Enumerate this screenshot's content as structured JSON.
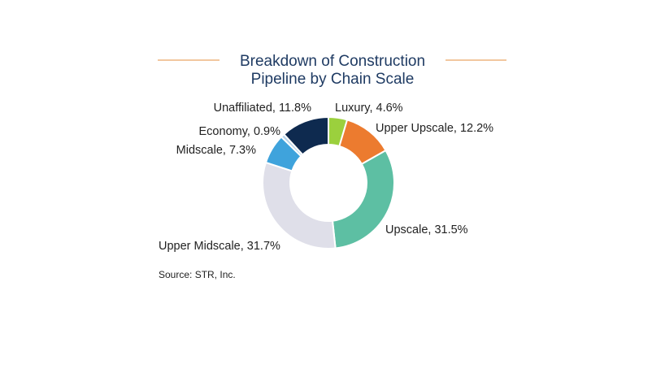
{
  "chart_data": {
    "type": "pie",
    "title": "Breakdown of Construction Pipeline by Chain Scale",
    "title_lines": [
      "Breakdown of Construction",
      "Pipeline by Chain Scale"
    ],
    "donut": true,
    "slices": [
      {
        "label": "Luxury, 4.6%",
        "name": "Luxury",
        "value": 4.6,
        "color": "#9bd03d"
      },
      {
        "label": "Upper Upscale, 12.2%",
        "name": "Upper Upscale",
        "value": 12.2,
        "color": "#ec7b2f"
      },
      {
        "label": "Upscale, 31.5%",
        "name": "Upscale",
        "value": 31.5,
        "color": "#5dbfa3"
      },
      {
        "label": "Upper Midscale, 31.7%",
        "name": "Upper Midscale",
        "value": 31.7,
        "color": "#dfdfe9"
      },
      {
        "label": "Midscale, 7.3%",
        "name": "Midscale",
        "value": 7.3,
        "color": "#3fa3dc"
      },
      {
        "label": "Economy, 0.9%",
        "name": "Economy",
        "value": 0.9,
        "color": "#b8d4ea"
      },
      {
        "label": "Unaffiliated, 11.8%",
        "name": "Unaffiliated",
        "value": 11.8,
        "color": "#0e2a4f"
      }
    ],
    "source": "Source: STR, Inc."
  }
}
